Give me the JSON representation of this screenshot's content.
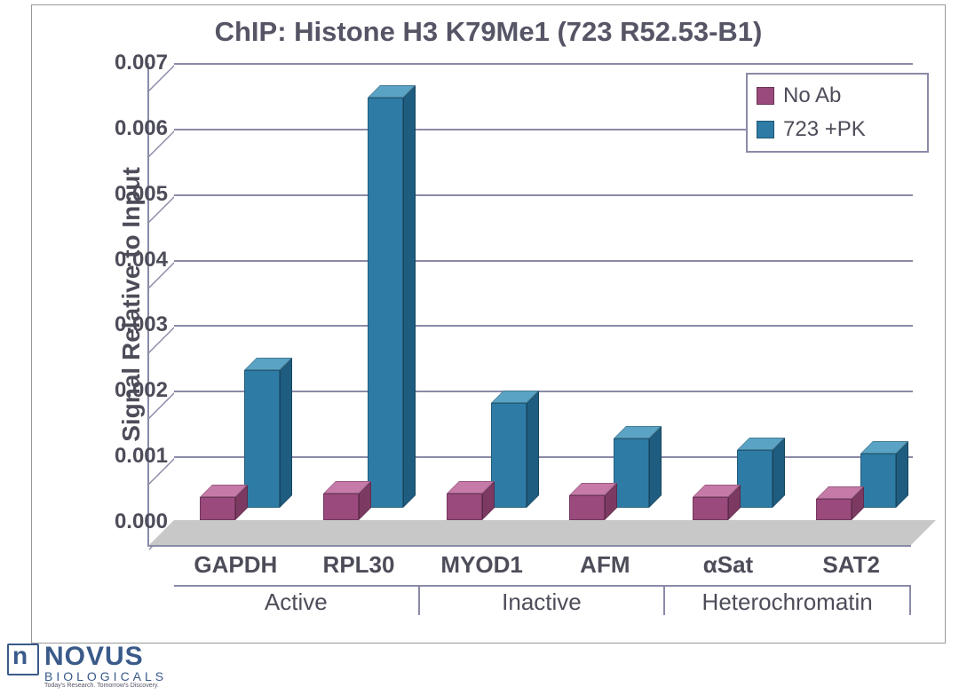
{
  "chart": {
    "type": "bar",
    "title": "ChIP: Histone H3 K79Me1 (723 R52.53-B1)",
    "ylabel": "Signal Relative to Input",
    "ylim_max": 0.007,
    "ytick_step": 0.001,
    "ytick_labels": [
      "0.000",
      "0.001",
      "0.002",
      "0.003",
      "0.004",
      "0.005",
      "0.006",
      "0.007"
    ],
    "categories": [
      "GAPDH",
      "RPL30",
      "MYOD1",
      "AFM",
      "αSat",
      "SAT2"
    ],
    "groups": [
      {
        "label": "Active",
        "span": 2
      },
      {
        "label": "Inactive",
        "span": 2
      },
      {
        "label": "Heterochromatin",
        "span": 2
      }
    ],
    "series": [
      {
        "name": "No Ab",
        "colors": {
          "front": "#9a4a7c",
          "top": "#c67aa8",
          "side": "#7c3a63"
        },
        "values": [
          0.00035,
          0.0004,
          0.0004,
          0.00038,
          0.00035,
          0.00033
        ]
      },
      {
        "name": "723 +PK",
        "colors": {
          "front": "#2e7ca6",
          "top": "#5aa3c4",
          "side": "#1f5d80"
        },
        "values": [
          0.0021,
          0.00625,
          0.0016,
          0.00105,
          0.00088,
          0.00083
        ]
      }
    ],
    "legend": [
      "No Ab",
      "723 +PK"
    ],
    "legend_swatches": [
      "#9a4a7c",
      "#2e7ca6"
    ],
    "plot_bg": "#ffffff",
    "floor_color": "#c8c8c8",
    "grid_color": "#8a8aa8",
    "text_color": "#4d4d5a",
    "title_fontsize": 31,
    "tick_fontsize": 24,
    "label_fontsize": 28
  },
  "logo": {
    "main": "NOVUS",
    "sub": "BIOLOGICALS",
    "tag": "Today's Research. Tomorrow's Discovery."
  }
}
